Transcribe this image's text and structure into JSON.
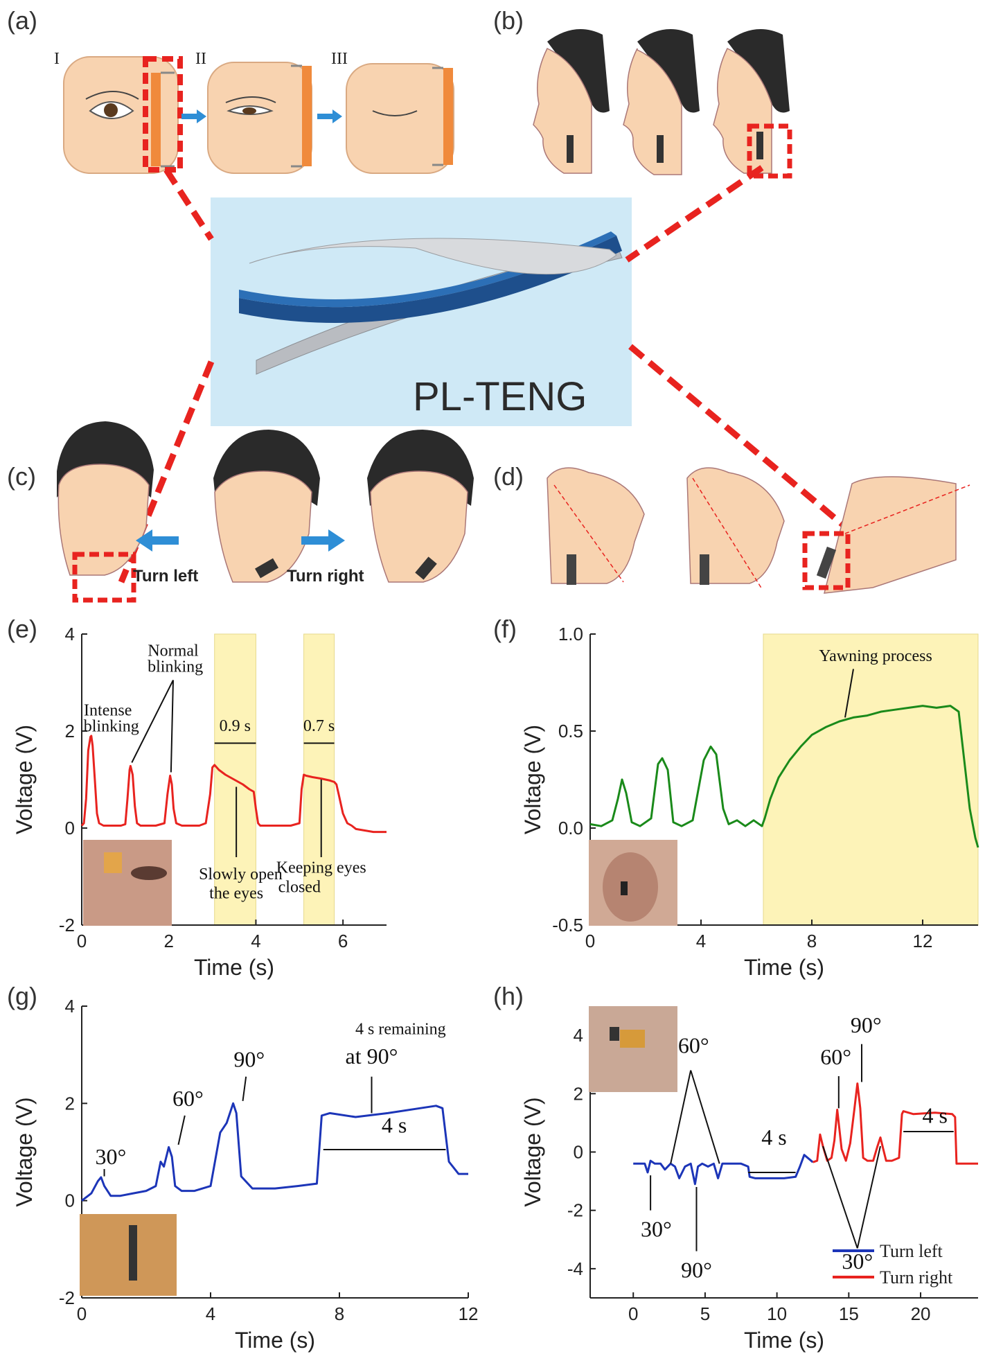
{
  "figure": {
    "panel_labels": [
      "(a)",
      "(b)",
      "(c)",
      "(d)",
      "(e)",
      "(f)",
      "(g)",
      "(h)"
    ],
    "device_label": "PL-TENG",
    "panel_a_steps": [
      "I",
      "II",
      "III"
    ],
    "panel_c_labels": {
      "left": "Turn left",
      "right": "Turn right"
    },
    "colors": {
      "red": "#e8231f",
      "green": "#1a8a1a",
      "blue": "#1c35b8",
      "highlight": "#fdf3b8",
      "skin": "#f8d3b0",
      "hair": "#2a2a2a",
      "device_bg": "#cfe9f6"
    }
  },
  "chart_data": [
    {
      "id": "e",
      "type": "line",
      "xlabel": "Time (s)",
      "ylabel": "Voltage (V)",
      "xlim": [
        0,
        7
      ],
      "ylim": [
        -2,
        4
      ],
      "xticks": [
        0,
        2,
        4,
        6
      ],
      "yticks": [
        -2,
        0,
        2,
        4
      ],
      "highlight_spans": [
        [
          3.05,
          4.0
        ],
        [
          5.1,
          5.8
        ]
      ],
      "series": [
        {
          "color": "#e8231f",
          "x": [
            0,
            0.05,
            0.1,
            0.15,
            0.2,
            0.22,
            0.25,
            0.3,
            0.35,
            0.4,
            0.5,
            0.7,
            0.9,
            1.0,
            1.05,
            1.1,
            1.12,
            1.17,
            1.22,
            1.27,
            1.35,
            1.5,
            1.7,
            1.9,
            1.97,
            2.03,
            2.07,
            2.11,
            2.17,
            2.3,
            2.5,
            2.7,
            2.85,
            2.95,
            3.0,
            3.05,
            3.15,
            3.3,
            3.5,
            3.7,
            3.85,
            3.95,
            4.0,
            4.05,
            4.1,
            4.2,
            4.5,
            4.8,
            5.0,
            5.05,
            5.1,
            5.15,
            5.3,
            5.5,
            5.7,
            5.8,
            5.85,
            5.9,
            6.0,
            6.1,
            6.2,
            6.3,
            6.5,
            6.7,
            7.0
          ],
          "y": [
            0.05,
            0.1,
            0.6,
            1.6,
            1.88,
            1.9,
            1.7,
            1.0,
            0.3,
            0.1,
            0.05,
            0.05,
            0.05,
            0.08,
            0.6,
            1.2,
            1.28,
            1.1,
            0.45,
            0.1,
            0.05,
            0.05,
            0.05,
            0.1,
            0.7,
            1.08,
            0.9,
            0.4,
            0.1,
            0.05,
            0.05,
            0.05,
            0.1,
            0.7,
            1.25,
            1.3,
            1.2,
            1.1,
            1.0,
            0.9,
            0.8,
            0.75,
            0.4,
            0.1,
            0.05,
            0.05,
            0.05,
            0.05,
            0.1,
            0.8,
            1.1,
            1.08,
            1.05,
            1.02,
            0.98,
            0.95,
            0.9,
            0.7,
            0.3,
            0.1,
            0.05,
            -0.02,
            -0.05,
            -0.08,
            -0.08
          ]
        }
      ],
      "annotations": [
        {
          "text": "Intense",
          "x": 0.6,
          "y": 2.32
        },
        {
          "text": "blinking",
          "x": 0.68,
          "y": 1.99
        },
        {
          "text": "Normal",
          "x": 2.1,
          "y": 3.55
        },
        {
          "text": "blinking",
          "x": 2.15,
          "y": 3.22
        },
        {
          "text": "0.9 s",
          "x": 3.52,
          "y": 2.0
        },
        {
          "text": "0.7 s",
          "x": 5.45,
          "y": 2.0
        },
        {
          "text": "Slowly open",
          "x": 3.65,
          "y": -1.06
        },
        {
          "text": "the eyes",
          "x": 3.55,
          "y": -1.45
        },
        {
          "text": "Keeping eyes",
          "x": 5.5,
          "y": -0.92
        },
        {
          "text": "closed",
          "x": 5.0,
          "y": -1.32
        }
      ]
    },
    {
      "id": "f",
      "type": "line",
      "xlabel": "Time (s)",
      "ylabel": "Voltage (V)",
      "xlim": [
        0,
        14
      ],
      "ylim": [
        -0.5,
        1.0
      ],
      "xticks": [
        0,
        4,
        8,
        12
      ],
      "yticks": [
        -0.5,
        0.0,
        0.5,
        1.0
      ],
      "highlight_spans": [
        [
          6.25,
          14
        ]
      ],
      "series": [
        {
          "color": "#1a8a1a",
          "x": [
            0,
            0.4,
            0.8,
            1.0,
            1.15,
            1.3,
            1.5,
            1.8,
            2.2,
            2.45,
            2.6,
            2.8,
            3.0,
            3.3,
            3.7,
            4.1,
            4.35,
            4.55,
            4.8,
            5.0,
            5.3,
            5.6,
            5.9,
            6.2,
            6.3,
            6.5,
            6.8,
            7.2,
            7.6,
            8.0,
            8.5,
            9.0,
            9.5,
            10.0,
            10.5,
            11.0,
            11.5,
            12.0,
            12.5,
            13.0,
            13.3,
            13.5,
            13.7,
            13.9,
            14.0
          ],
          "y": [
            0.02,
            0.01,
            0.04,
            0.15,
            0.25,
            0.18,
            0.03,
            0.01,
            0.05,
            0.33,
            0.36,
            0.3,
            0.03,
            0.01,
            0.04,
            0.35,
            0.42,
            0.38,
            0.1,
            0.02,
            0.04,
            0.01,
            0.04,
            0.01,
            0.05,
            0.15,
            0.26,
            0.35,
            0.42,
            0.48,
            0.52,
            0.55,
            0.57,
            0.58,
            0.6,
            0.61,
            0.62,
            0.63,
            0.62,
            0.63,
            0.6,
            0.35,
            0.1,
            -0.05,
            -0.1
          ]
        }
      ],
      "annotations": [
        {
          "text": "Yawning process",
          "x": 10.3,
          "y": 0.86
        }
      ]
    },
    {
      "id": "g",
      "type": "line",
      "xlabel": "Time (s)",
      "ylabel": "Voltage (V)",
      "xlim": [
        0,
        12
      ],
      "ylim": [
        -2,
        4
      ],
      "xticks": [
        0,
        4,
        8,
        12
      ],
      "yticks": [
        -2,
        0,
        2,
        4
      ],
      "series": [
        {
          "color": "#1c35b8",
          "x": [
            0,
            0.3,
            0.5,
            0.6,
            0.7,
            0.9,
            1.2,
            1.6,
            2.0,
            2.3,
            2.45,
            2.55,
            2.7,
            2.8,
            2.9,
            3.1,
            3.5,
            4.0,
            4.3,
            4.5,
            4.7,
            4.8,
            4.95,
            5.3,
            6.0,
            6.7,
            7.3,
            7.45,
            7.7,
            8.5,
            9.5,
            10.5,
            11.0,
            11.2,
            11.4,
            11.7,
            12.0
          ],
          "y": [
            0,
            0.15,
            0.4,
            0.48,
            0.3,
            0.1,
            0.1,
            0.15,
            0.2,
            0.3,
            0.8,
            0.7,
            1.1,
            0.9,
            0.3,
            0.2,
            0.2,
            0.3,
            1.4,
            1.6,
            2.0,
            1.8,
            0.5,
            0.25,
            0.25,
            0.3,
            0.35,
            1.75,
            1.8,
            1.72,
            1.8,
            1.9,
            1.95,
            1.9,
            0.8,
            0.55,
            0.55
          ]
        }
      ],
      "annotations": [
        {
          "text": "30°",
          "x": 0.9,
          "y": 0.75
        },
        {
          "text": "60°",
          "x": 3.3,
          "y": 1.95
        },
        {
          "text": "90°",
          "x": 5.2,
          "y": 2.75
        },
        {
          "text": "4 s remaining",
          "x": 9.9,
          "y": 3.42
        },
        {
          "text": "at 90°",
          "x": 9.0,
          "y": 2.82
        },
        {
          "text": "4 s",
          "x": 9.7,
          "y": 1.4
        }
      ]
    },
    {
      "id": "h",
      "type": "line",
      "xlabel": "Time (s)",
      "ylabel": "Voltage (V)",
      "xlim": [
        -3,
        24
      ],
      "ylim": [
        -5,
        5
      ],
      "xticks": [
        0,
        5,
        10,
        15,
        20
      ],
      "yticks": [
        -4,
        -2,
        0,
        2,
        4
      ],
      "series": [
        {
          "name": "Turn left",
          "color": "#1c35b8",
          "x": [
            0,
            0.8,
            1.0,
            1.2,
            1.5,
            1.9,
            2.2,
            2.6,
            2.9,
            3.2,
            3.6,
            4.0,
            4.3,
            4.5,
            4.8,
            5.2,
            5.6,
            5.9,
            6.2,
            6.6,
            7.0,
            7.5,
            8.0,
            8.1,
            8.5,
            9.5,
            10.5,
            11.3,
            11.6,
            11.9,
            12.5
          ],
          "y": [
            -0.4,
            -0.4,
            -0.7,
            -0.3,
            -0.4,
            -0.4,
            -0.6,
            -0.4,
            -0.5,
            -0.9,
            -0.5,
            -0.4,
            -1.1,
            -0.5,
            -0.4,
            -0.5,
            -0.4,
            -0.9,
            -0.4,
            -0.4,
            -0.4,
            -0.4,
            -0.5,
            -0.85,
            -0.9,
            -0.9,
            -0.9,
            -0.85,
            -0.5,
            -0.1,
            -0.35
          ]
        },
        {
          "name": "Turn right",
          "color": "#e8231f",
          "x": [
            12.5,
            12.8,
            13.0,
            13.2,
            13.5,
            13.8,
            14.0,
            14.2,
            14.5,
            14.8,
            15.1,
            15.4,
            15.6,
            15.8,
            16.0,
            16.3,
            16.7,
            17.0,
            17.2,
            17.4,
            17.6,
            18.0,
            18.5,
            18.7,
            18.8,
            19.5,
            21.0,
            22.2,
            22.4,
            22.5,
            23.0,
            24.0
          ],
          "y": [
            -0.35,
            -0.3,
            0.6,
            0.2,
            -0.3,
            -0.2,
            0.4,
            1.45,
            0.1,
            -0.3,
            0.3,
            1.5,
            2.35,
            1.5,
            -0.2,
            -0.3,
            -0.3,
            0.2,
            0.5,
            0.1,
            -0.3,
            -0.3,
            -0.2,
            1.3,
            1.4,
            1.3,
            1.35,
            1.3,
            1.2,
            -0.4,
            -0.4,
            -0.4
          ]
        }
      ],
      "legend": {
        "position": "bottom-right"
      },
      "annotations": [
        {
          "text": "60°",
          "x": 4.2,
          "y": 3.4
        },
        {
          "text": "30°",
          "x": 1.6,
          "y": -2.9
        },
        {
          "text": "90°",
          "x": 4.4,
          "y": -4.3
        },
        {
          "text": "4 s",
          "x": 9.8,
          "y": 0.25
        },
        {
          "text": "60°",
          "x": 14.1,
          "y": 3.0
        },
        {
          "text": "90°",
          "x": 16.2,
          "y": 4.1
        },
        {
          "text": "30°",
          "x": 15.6,
          "y": -4.0
        },
        {
          "text": "4 s",
          "x": 21.0,
          "y": 1.0
        }
      ]
    }
  ]
}
